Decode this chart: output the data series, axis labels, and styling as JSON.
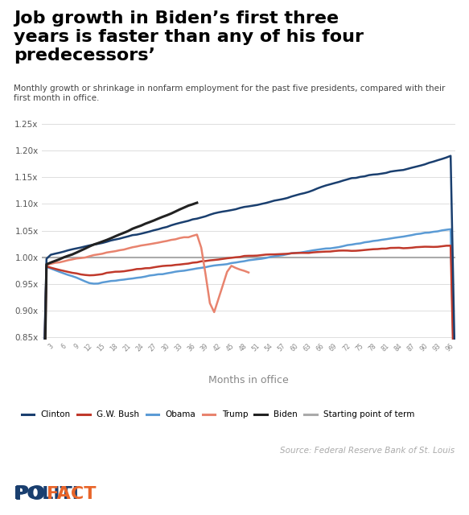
{
  "title": "Job growth in Biden’s first three\nyears is faster than any of his four\npredecessors’",
  "subtitle": "Monthly growth or shrinkage in nonfarm employment for the past five presidents, compared with their\nfirst month in office.",
  "xlabel": "Months in office",
  "ylabel": "",
  "source": "Source: Federal Reserve Bank of St. Louis",
  "ylim": [
    0.845,
    1.27
  ],
  "yticks": [
    0.85,
    0.9,
    0.95,
    1.0,
    1.05,
    1.1,
    1.15,
    1.2,
    1.25
  ],
  "colors": {
    "clinton": "#1a3f6f",
    "gw_bush": "#c0392b",
    "obama": "#5b9bd5",
    "trump": "#e8836e",
    "biden": "#222222",
    "reference": "#aaaaaa"
  },
  "legend_labels": [
    "Clinton",
    "G.W. Bush",
    "Obama",
    "Trump",
    "Biden",
    "Starting point of term"
  ],
  "background_color": "#ffffff",
  "politifact_color": "#e8652a",
  "politifact_check_color": "#ffcc00"
}
